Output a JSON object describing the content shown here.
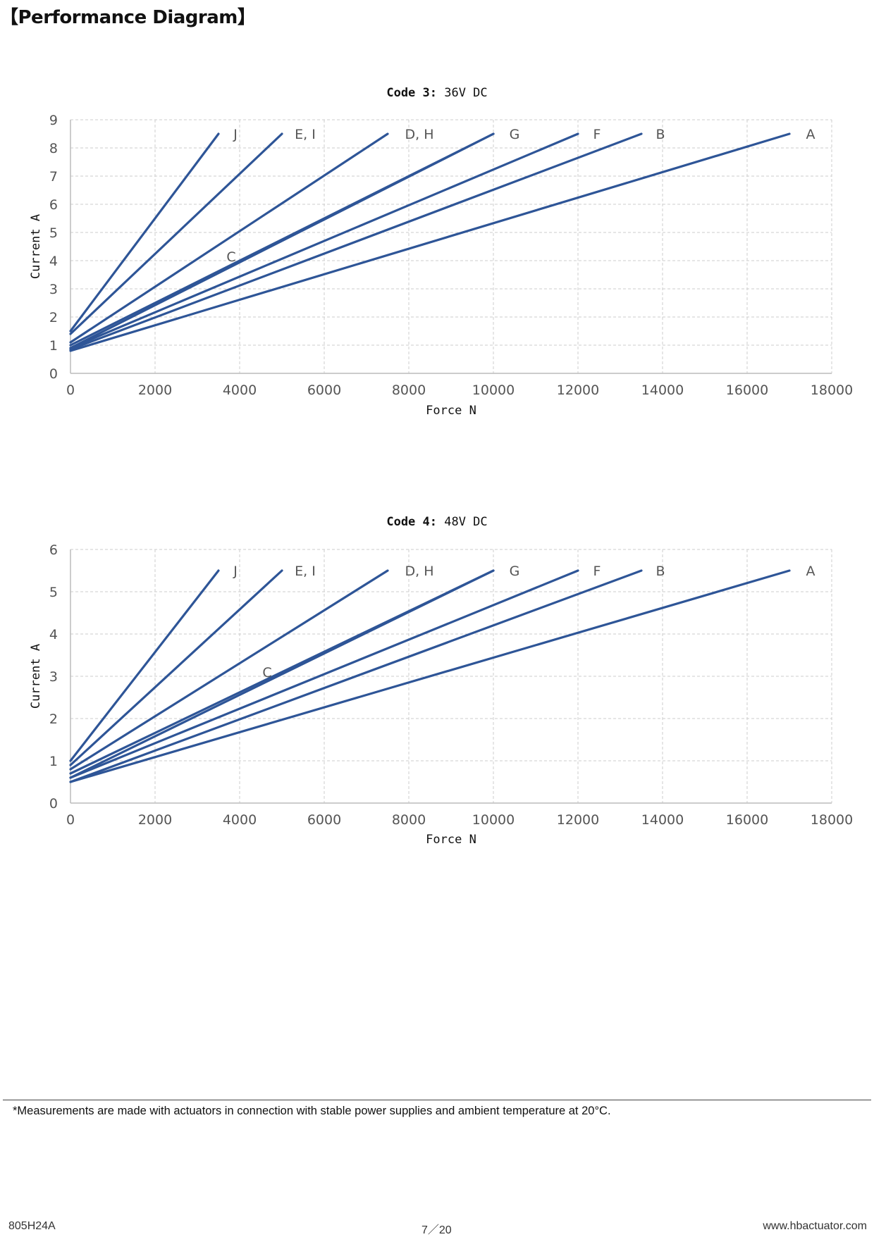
{
  "page": {
    "heading": "【Performance Diagram】",
    "footnote": "*Measurements are made with actuators in connection with stable power supplies and ambient temperature at 20°C.",
    "footer": {
      "model": "805H24A",
      "page": "7／20",
      "website": "www.hbactuator.com"
    }
  },
  "colors": {
    "series": "#2e5597",
    "grid": "#cccccc",
    "axis": "#bbbbbb"
  },
  "chart_data": [
    {
      "type": "line",
      "title_bold": "Code 3:",
      "title_rest": " 36V DC",
      "xlabel": "Force N",
      "ylabel": "Current A",
      "xlim": [
        0,
        18000
      ],
      "ylim": [
        0,
        9
      ],
      "xticks": [
        "0",
        "2000",
        "4000",
        "6000",
        "8000",
        "10000",
        "12000",
        "14000",
        "16000",
        "18000"
      ],
      "yticks": [
        "0",
        "1",
        "2",
        "3",
        "4",
        "5",
        "6",
        "7",
        "8",
        "9"
      ],
      "grid": true,
      "series": [
        {
          "name": "J",
          "x": [
            0,
            3500
          ],
          "y": [
            1.5,
            8.5
          ]
        },
        {
          "name": "E, I",
          "x": [
            0,
            5000
          ],
          "y": [
            1.4,
            8.5
          ]
        },
        {
          "name": "D, H",
          "x": [
            0,
            7500
          ],
          "y": [
            1.1,
            8.5
          ]
        },
        {
          "name": "C",
          "x": [
            0,
            10000
          ],
          "y": [
            0.9,
            8.5
          ]
        },
        {
          "name": "G",
          "x": [
            0,
            10000
          ],
          "y": [
            1.0,
            8.5
          ]
        },
        {
          "name": "F",
          "x": [
            0,
            12000
          ],
          "y": [
            0.9,
            8.5
          ]
        },
        {
          "name": "B",
          "x": [
            0,
            13500
          ],
          "y": [
            0.85,
            8.5
          ]
        },
        {
          "name": "A",
          "x": [
            0,
            17000
          ],
          "y": [
            0.8,
            8.5
          ]
        }
      ],
      "labels": [
        {
          "text": "J",
          "x": 3900,
          "y": 8.5
        },
        {
          "text": "E, I",
          "x": 5550,
          "y": 8.5
        },
        {
          "text": "D, H",
          "x": 8250,
          "y": 8.5
        },
        {
          "text": "G",
          "x": 10500,
          "y": 8.5
        },
        {
          "text": "F",
          "x": 12450,
          "y": 8.5
        },
        {
          "text": "B",
          "x": 13950,
          "y": 8.5
        },
        {
          "text": "A",
          "x": 17500,
          "y": 8.5
        },
        {
          "text": "C",
          "x": 3800,
          "y": 4.15
        }
      ]
    },
    {
      "type": "line",
      "title_bold": "Code 4:",
      "title_rest": " 48V DC",
      "xlabel": "Force N",
      "ylabel": "Current A",
      "xlim": [
        0,
        18000
      ],
      "ylim": [
        0,
        6
      ],
      "xticks": [
        "0",
        "2000",
        "4000",
        "6000",
        "8000",
        "10000",
        "12000",
        "14000",
        "16000",
        "18000"
      ],
      "yticks": [
        "0",
        "1",
        "2",
        "3",
        "4",
        "5",
        "6"
      ],
      "grid": true,
      "series": [
        {
          "name": "J",
          "x": [
            0,
            3500
          ],
          "y": [
            1.0,
            5.5
          ]
        },
        {
          "name": "E, I",
          "x": [
            0,
            5000
          ],
          "y": [
            0.9,
            5.5
          ]
        },
        {
          "name": "D, H",
          "x": [
            0,
            7500
          ],
          "y": [
            0.8,
            5.5
          ]
        },
        {
          "name": "C",
          "x": [
            0,
            10000
          ],
          "y": [
            0.6,
            5.5
          ]
        },
        {
          "name": "G",
          "x": [
            0,
            10000
          ],
          "y": [
            0.7,
            5.5
          ]
        },
        {
          "name": "F",
          "x": [
            0,
            12000
          ],
          "y": [
            0.6,
            5.5
          ]
        },
        {
          "name": "B",
          "x": [
            0,
            13500
          ],
          "y": [
            0.5,
            5.5
          ]
        },
        {
          "name": "A",
          "x": [
            0,
            17000
          ],
          "y": [
            0.5,
            5.5
          ]
        }
      ],
      "labels": [
        {
          "text": "J",
          "x": 3900,
          "y": 5.5
        },
        {
          "text": "E, I",
          "x": 5550,
          "y": 5.5
        },
        {
          "text": "D, H",
          "x": 8250,
          "y": 5.5
        },
        {
          "text": "G",
          "x": 10500,
          "y": 5.5
        },
        {
          "text": "F",
          "x": 12450,
          "y": 5.5
        },
        {
          "text": "B",
          "x": 13950,
          "y": 5.5
        },
        {
          "text": "A",
          "x": 17500,
          "y": 5.5
        },
        {
          "text": "C",
          "x": 4650,
          "y": 3.1
        }
      ]
    }
  ]
}
